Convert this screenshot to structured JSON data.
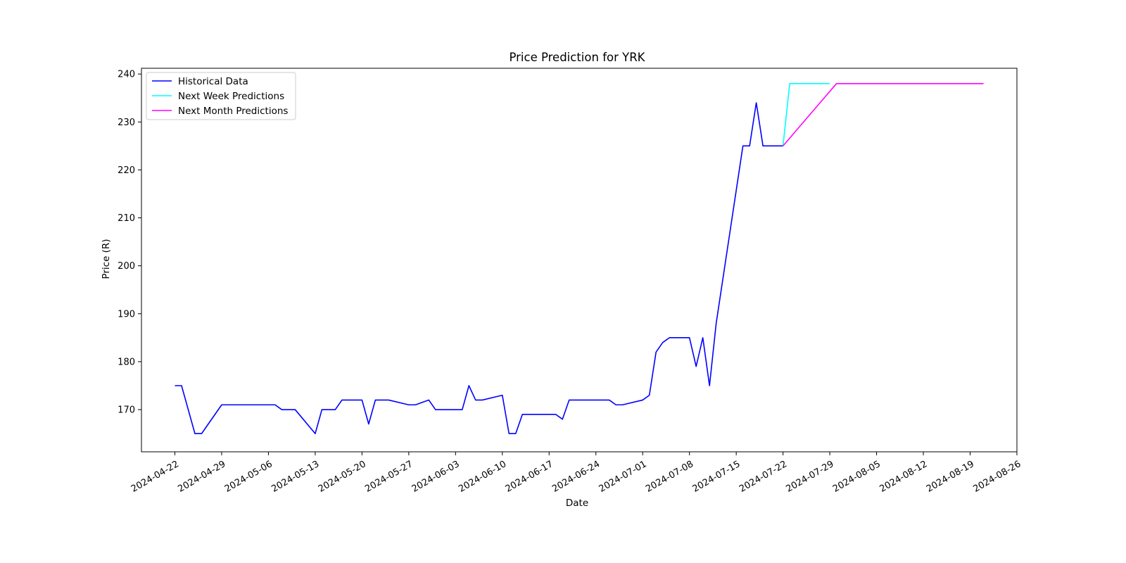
{
  "chart_data": {
    "type": "line",
    "title": "Price Prediction for YRK",
    "xlabel": "Date",
    "ylabel": "Price (R)",
    "x_axis_type": "date",
    "xlim": [
      "2024-04-17",
      "2024-08-26"
    ],
    "ylim": [
      161.2,
      241.2
    ],
    "xticks": [
      "2024-04-22",
      "2024-04-29",
      "2024-05-06",
      "2024-05-13",
      "2024-05-20",
      "2024-05-27",
      "2024-06-03",
      "2024-06-10",
      "2024-06-17",
      "2024-06-24",
      "2024-07-01",
      "2024-07-08",
      "2024-07-15",
      "2024-07-22",
      "2024-07-29",
      "2024-08-05",
      "2024-08-12",
      "2024-08-19",
      "2024-08-26"
    ],
    "yticks": [
      170,
      180,
      190,
      200,
      210,
      220,
      230,
      240
    ],
    "grid": false,
    "legend": "upper left",
    "series": [
      {
        "name": "Historical Data",
        "color": "#0000ff",
        "points": [
          [
            "2024-04-22",
            175
          ],
          [
            "2024-04-23",
            175
          ],
          [
            "2024-04-25",
            165
          ],
          [
            "2024-04-26",
            165
          ],
          [
            "2024-04-29",
            171
          ],
          [
            "2024-04-30",
            171
          ],
          [
            "2024-05-01",
            171
          ],
          [
            "2024-05-02",
            171
          ],
          [
            "2024-05-03",
            171
          ],
          [
            "2024-05-06",
            171
          ],
          [
            "2024-05-07",
            171
          ],
          [
            "2024-05-08",
            170
          ],
          [
            "2024-05-09",
            170
          ],
          [
            "2024-05-10",
            170
          ],
          [
            "2024-05-13",
            165
          ],
          [
            "2024-05-14",
            170
          ],
          [
            "2024-05-15",
            170
          ],
          [
            "2024-05-16",
            170
          ],
          [
            "2024-05-17",
            172
          ],
          [
            "2024-05-20",
            172
          ],
          [
            "2024-05-21",
            167
          ],
          [
            "2024-05-22",
            172
          ],
          [
            "2024-05-23",
            172
          ],
          [
            "2024-05-24",
            172
          ],
          [
            "2024-05-27",
            171
          ],
          [
            "2024-05-28",
            171
          ],
          [
            "2024-05-30",
            172
          ],
          [
            "2024-05-31",
            170
          ],
          [
            "2024-06-03",
            170
          ],
          [
            "2024-06-04",
            170
          ],
          [
            "2024-06-05",
            175
          ],
          [
            "2024-06-06",
            172
          ],
          [
            "2024-06-07",
            172
          ],
          [
            "2024-06-10",
            173
          ],
          [
            "2024-06-11",
            165
          ],
          [
            "2024-06-12",
            165
          ],
          [
            "2024-06-13",
            169
          ],
          [
            "2024-06-14",
            169
          ],
          [
            "2024-06-17",
            169
          ],
          [
            "2024-06-18",
            169
          ],
          [
            "2024-06-19",
            168
          ],
          [
            "2024-06-20",
            172
          ],
          [
            "2024-06-21",
            172
          ],
          [
            "2024-06-24",
            172
          ],
          [
            "2024-06-25",
            172
          ],
          [
            "2024-06-26",
            172
          ],
          [
            "2024-06-27",
            171
          ],
          [
            "2024-06-28",
            171
          ],
          [
            "2024-07-01",
            172
          ],
          [
            "2024-07-02",
            173
          ],
          [
            "2024-07-03",
            182
          ],
          [
            "2024-07-04",
            184
          ],
          [
            "2024-07-05",
            185
          ],
          [
            "2024-07-08",
            185
          ],
          [
            "2024-07-09",
            179
          ],
          [
            "2024-07-10",
            185
          ],
          [
            "2024-07-11",
            175
          ],
          [
            "2024-07-12",
            188
          ],
          [
            "2024-07-16",
            225
          ],
          [
            "2024-07-17",
            225
          ],
          [
            "2024-07-18",
            234
          ],
          [
            "2024-07-19",
            225
          ],
          [
            "2024-07-22",
            225
          ]
        ]
      },
      {
        "name": "Next Week Predictions",
        "color": "#00ffff",
        "points": [
          [
            "2024-07-22",
            225
          ],
          [
            "2024-07-23",
            238
          ],
          [
            "2024-07-24",
            238
          ],
          [
            "2024-07-25",
            238
          ],
          [
            "2024-07-26",
            238
          ],
          [
            "2024-07-27",
            238
          ],
          [
            "2024-07-28",
            238
          ],
          [
            "2024-07-29",
            238
          ]
        ]
      },
      {
        "name": "Next Month Predictions",
        "color": "#ff00ff",
        "points": [
          [
            "2024-07-22",
            225
          ],
          [
            "2024-07-30",
            238
          ],
          [
            "2024-08-05",
            238
          ],
          [
            "2024-08-12",
            238
          ],
          [
            "2024-08-19",
            238
          ],
          [
            "2024-08-21",
            238
          ]
        ]
      }
    ]
  }
}
